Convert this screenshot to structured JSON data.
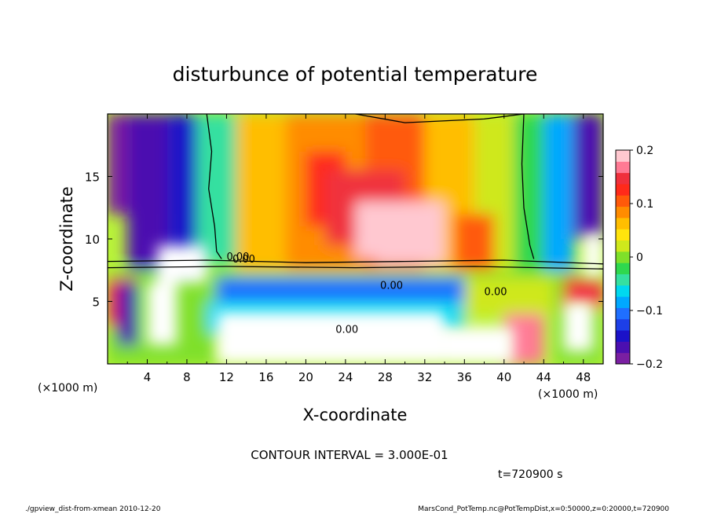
{
  "chart_data": {
    "type": "heatmap",
    "title": "disturbunce of potential temperature",
    "xlabel": "X-coordinate",
    "ylabel": "Z-coordinate",
    "x_unit_left": "(×1000 m)",
    "x_unit_right": "(×1000 m)",
    "xlim": [
      0,
      50
    ],
    "ylim": [
      0,
      20
    ],
    "x_ticks": [
      4,
      8,
      12,
      16,
      20,
      24,
      28,
      32,
      36,
      40,
      44,
      48
    ],
    "y_ticks": [
      5,
      10,
      15
    ],
    "colorbar": {
      "range": [
        -0.2,
        0.2
      ],
      "tick_values": [
        0.2,
        0.1,
        0,
        -0.1,
        -0.2
      ],
      "tick_labels": [
        "0.2",
        "0.1",
        "0",
        "−0.1",
        "−0.2"
      ],
      "colors": [
        "#7a1fa2",
        "#4b0fb0",
        "#1b12c8",
        "#1d3fe8",
        "#1f6fff",
        "#00a8ff",
        "#00d8ef",
        "#35e0a0",
        "#2fd84e",
        "#7fe02a",
        "#cfe81c",
        "#ffe40c",
        "#ffbe00",
        "#ff8c00",
        "#ff5a0a",
        "#ff2a1a",
        "#f0303c",
        "#ff7a94",
        "#ffc8d0"
      ]
    },
    "contour_interval_text": "CONTOUR INTERVAL = 3.000E-01",
    "contour_labels": [
      "0.00",
      "0.00",
      "0.00",
      "0.00",
      "0.00"
    ],
    "field_fill": [
      {
        "x": 0,
        "y": 20,
        "w": 6,
        "h": 8,
        "v": -0.18
      },
      {
        "x": 2,
        "y": 20,
        "w": 4,
        "h": 13,
        "v": -0.17
      },
      {
        "x": 6,
        "y": 20,
        "w": 3,
        "h": 13,
        "v": -0.14
      },
      {
        "x": 9,
        "y": 20,
        "w": 4,
        "h": 12,
        "v": -0.05
      },
      {
        "x": 13,
        "y": 20,
        "w": 5,
        "h": 12.5,
        "v": 0.06
      },
      {
        "x": 18,
        "y": 20,
        "w": 8,
        "h": 12.5,
        "v": 0.09
      },
      {
        "x": 26,
        "y": 20,
        "w": 6,
        "h": 12.5,
        "v": 0.1
      },
      {
        "x": 32,
        "y": 20,
        "w": 5,
        "h": 12.5,
        "v": 0.07
      },
      {
        "x": 37,
        "y": 20,
        "w": 4,
        "h": 12.5,
        "v": 0.03
      },
      {
        "x": 41,
        "y": 20,
        "w": 3,
        "h": 12.5,
        "v": -0.02
      },
      {
        "x": 44,
        "y": 20,
        "w": 3,
        "h": 12.5,
        "v": -0.08
      },
      {
        "x": 47,
        "y": 20,
        "w": 3,
        "h": 10,
        "v": -0.16
      },
      {
        "x": 20,
        "y": 17,
        "w": 4,
        "h": 6,
        "v": 0.12
      },
      {
        "x": 22,
        "y": 15.5,
        "w": 8,
        "h": 6,
        "v": 0.15
      },
      {
        "x": 25,
        "y": 13,
        "w": 9,
        "h": 4.5,
        "v": 0.18
      },
      {
        "x": 27,
        "y": 10.5,
        "w": 7,
        "h": 2.5,
        "v": 0.19
      },
      {
        "x": 35,
        "y": 12,
        "w": 4,
        "h": 4.5,
        "v": 0.1
      },
      {
        "x": 0,
        "y": 7.5,
        "w": 50,
        "h": 0.6,
        "v": 0.0
      },
      {
        "x": 0,
        "y": 6.9,
        "w": 11,
        "h": 7,
        "v": 0.0
      },
      {
        "x": 0,
        "y": 6.9,
        "w": 3,
        "h": 4,
        "v": 0.15
      },
      {
        "x": 1,
        "y": 6.5,
        "w": 2,
        "h": 5,
        "v": -0.17
      },
      {
        "x": 11,
        "y": 6.9,
        "w": 26,
        "h": 2,
        "v": -0.1
      },
      {
        "x": 10,
        "y": 5,
        "w": 26,
        "h": 2.5,
        "v": -0.06
      },
      {
        "x": 36,
        "y": 6.9,
        "w": 9,
        "h": 3,
        "v": 0.03
      },
      {
        "x": 40,
        "y": 4,
        "w": 4,
        "h": 4,
        "v": 0.17
      },
      {
        "x": 45,
        "y": 6.9,
        "w": 5,
        "h": 7,
        "v": 0.0
      },
      {
        "x": 46,
        "y": 6.9,
        "w": 4,
        "h": 2.5,
        "v": 0.15
      }
    ],
    "white_regions": [
      {
        "x": 4,
        "y": 6.5,
        "w": 3,
        "h": 5
      },
      {
        "x": 11,
        "y": 4.2,
        "w": 23,
        "h": 4.2
      },
      {
        "x": 34,
        "y": 3,
        "w": 7,
        "h": 3
      },
      {
        "x": 46,
        "y": 5,
        "w": 3,
        "h": 4
      },
      {
        "x": 48,
        "y": 10.5,
        "w": 2,
        "h": 3.5
      },
      {
        "x": 5,
        "y": 9.5,
        "w": 5,
        "h": 3
      }
    ],
    "contour_lines": [
      [
        [
          10,
          20
        ],
        [
          10.5,
          17
        ],
        [
          10.2,
          14
        ],
        [
          10.8,
          11
        ],
        [
          11,
          9
        ],
        [
          11.5,
          8.4
        ]
      ],
      [
        [
          25,
          20
        ],
        [
          30,
          19.3
        ],
        [
          38,
          19.6
        ],
        [
          42,
          20
        ]
      ],
      [
        [
          42,
          20
        ],
        [
          41.8,
          16
        ],
        [
          42,
          12.5
        ],
        [
          42.6,
          9.5
        ],
        [
          43,
          8.4
        ]
      ],
      [
        [
          0,
          8.2
        ],
        [
          10,
          8.3
        ],
        [
          20,
          8.1
        ],
        [
          30,
          8.2
        ],
        [
          40,
          8.3
        ],
        [
          50,
          8.0
        ]
      ],
      [
        [
          0,
          7.7
        ],
        [
          12,
          7.8
        ],
        [
          25,
          7.7
        ],
        [
          37,
          7.8
        ],
        [
          50,
          7.6
        ]
      ]
    ],
    "contour_label_positions": [
      [
        12,
        8.3
      ],
      [
        12.6,
        8.1
      ],
      [
        27.5,
        6
      ],
      [
        23,
        2.5
      ],
      [
        38,
        5.5
      ]
    ]
  },
  "annotations": {
    "time_label": "t=720900 s",
    "footer_left": "./gpview_dist-from-xmean   2010-12-20",
    "footer_right": "MarsCond_PotTemp.nc@PotTempDist,x=0:50000,z=0:20000,t=720900"
  }
}
